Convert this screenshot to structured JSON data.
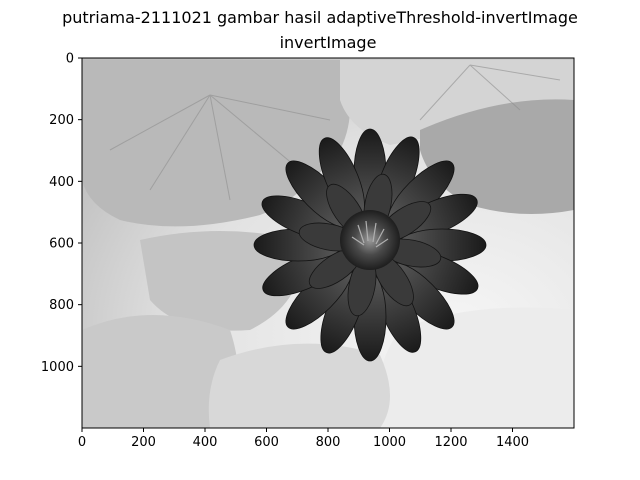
{
  "figure": {
    "suptitle": "putriama-2111021 gambar hasil adaptiveThreshold-invertImage",
    "axes_title": "invertImage",
    "image_description_colors": {
      "background_light": "#ececec",
      "leaf_mid": "#bdbdbd",
      "flower_dark": "#2a2a2a"
    }
  },
  "chart_data": {
    "type": "image",
    "title": "invertImage",
    "xlim": [
      0,
      1600
    ],
    "ylim": [
      1200,
      0
    ],
    "xticks": [
      "0",
      "200",
      "400",
      "600",
      "800",
      "1000",
      "1200",
      "1400"
    ],
    "yticks": [
      "0",
      "200",
      "400",
      "600",
      "800",
      "1000"
    ],
    "xtick_values": [
      0,
      200,
      400,
      600,
      800,
      1000,
      1200,
      1400
    ],
    "ytick_values": [
      0,
      200,
      400,
      600,
      800,
      1000
    ]
  }
}
